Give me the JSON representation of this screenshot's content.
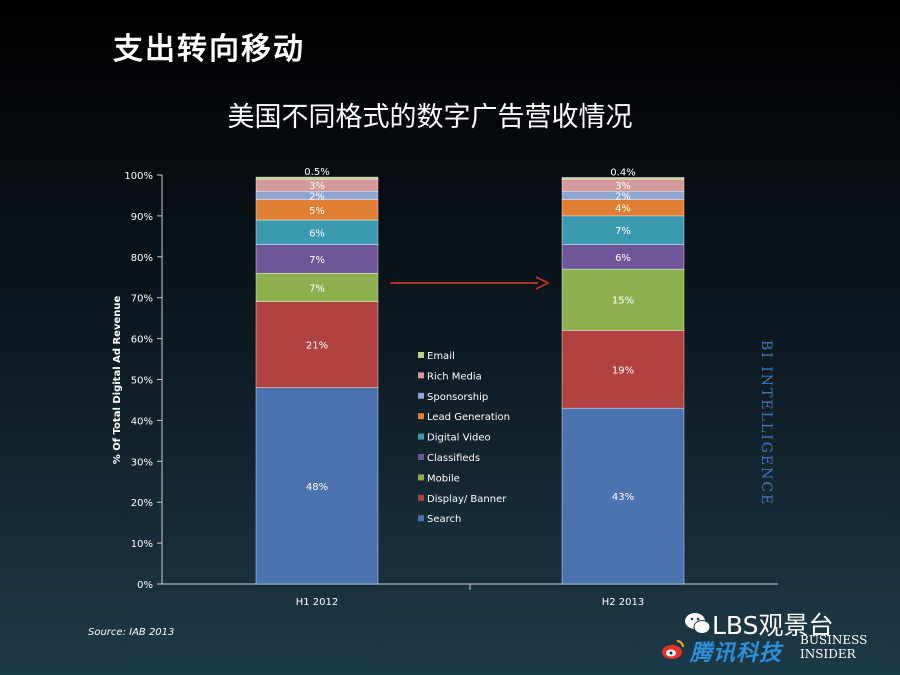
{
  "slide_title": "支出转向移动",
  "chart_data": {
    "type": "bar",
    "stacked": true,
    "title": "美国不同格式的数字广告营收情况",
    "ylabel": "% Of Total Digital Ad Revenue",
    "xlabel": "",
    "ylim": [
      0,
      100
    ],
    "yticks": [
      "0%",
      "10%",
      "20%",
      "30%",
      "40%",
      "50%",
      "60%",
      "70%",
      "80%",
      "90%",
      "100%"
    ],
    "categories": [
      "H1 2012",
      "H2 2013"
    ],
    "series": [
      {
        "name": "Search",
        "values": [
          48,
          43
        ],
        "labels": [
          "48%",
          "43%"
        ],
        "color": "#4a73b0"
      },
      {
        "name": "Display/ Banner",
        "values": [
          21,
          19
        ],
        "labels": [
          "21%",
          "19%"
        ],
        "color": "#b2423f"
      },
      {
        "name": "Mobile",
        "values": [
          7,
          15
        ],
        "labels": [
          "7%",
          "15%"
        ],
        "color": "#8eb14f"
      },
      {
        "name": "Classifieds",
        "values": [
          7,
          6
        ],
        "labels": [
          "7%",
          "6%"
        ],
        "color": "#6e5699"
      },
      {
        "name": "Digital Video",
        "values": [
          6,
          7
        ],
        "labels": [
          "6%",
          "7%"
        ],
        "color": "#3c9ab0"
      },
      {
        "name": "Lead Generation",
        "values": [
          5,
          4
        ],
        "labels": [
          "5%",
          "4%"
        ],
        "color": "#e07f33"
      },
      {
        "name": "Sponsorship",
        "values": [
          2,
          2
        ],
        "labels": [
          "2%",
          "2%"
        ],
        "color": "#8ea5d2"
      },
      {
        "name": "Rich Media",
        "values": [
          3,
          3
        ],
        "labels": [
          "3%",
          "3%"
        ],
        "color": "#d39a99"
      },
      {
        "name": "Email",
        "values": [
          0.5,
          0.4
        ],
        "labels": [
          "0.5%",
          "0.4%"
        ],
        "color": "#b9d38c"
      }
    ],
    "legend": [
      "Email",
      "Rich Media",
      "Sponsorship",
      "Lead Generation",
      "Digital Video",
      "Classifieds",
      "Mobile",
      "Display/ Banner",
      "Search"
    ],
    "legend_position": "center",
    "grid": false
  },
  "source": "Source: IAB 2013",
  "side_brand": "BI INTELLIGENCE",
  "watermark": "LBS观景台",
  "tencent_logo": "腾讯科技",
  "bi_logo_line1": "BUSINESS",
  "bi_logo_line2": "INSIDER",
  "colors": {
    "arrow": "#c0332b",
    "axis": "#cccccc"
  }
}
